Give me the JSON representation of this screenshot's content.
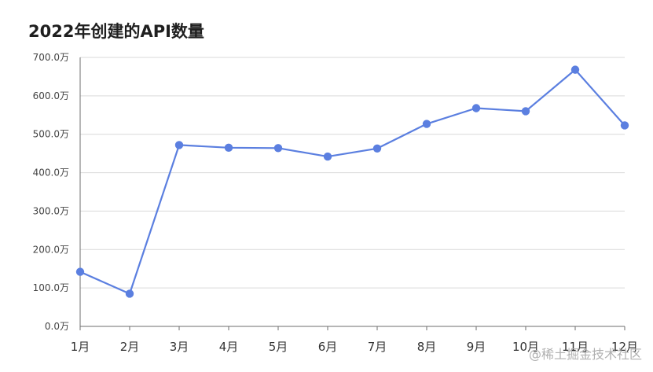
{
  "chart_data": {
    "type": "line",
    "title": "2022年创建的API数量",
    "categories": [
      "1月",
      "2月",
      "3月",
      "4月",
      "5月",
      "6月",
      "7月",
      "8月",
      "9月",
      "10月",
      "11月",
      "12月"
    ],
    "series": [
      {
        "values": [
          142,
          85,
          472,
          465,
          464,
          442,
          463,
          527,
          568,
          560,
          668,
          523
        ]
      }
    ],
    "ylim": [
      0,
      700
    ],
    "yticks": [
      0,
      100,
      200,
      300,
      400,
      500,
      600,
      700
    ],
    "ytick_labels": [
      "0.0万",
      "100.0万",
      "200.0万",
      "300.0万",
      "400.0万",
      "500.0万",
      "600.0万",
      "700.0万"
    ],
    "grid": true,
    "line_color": "#5b7fe0",
    "xlabel": "",
    "ylabel": ""
  },
  "watermark": "@稀土掘金技术社区"
}
